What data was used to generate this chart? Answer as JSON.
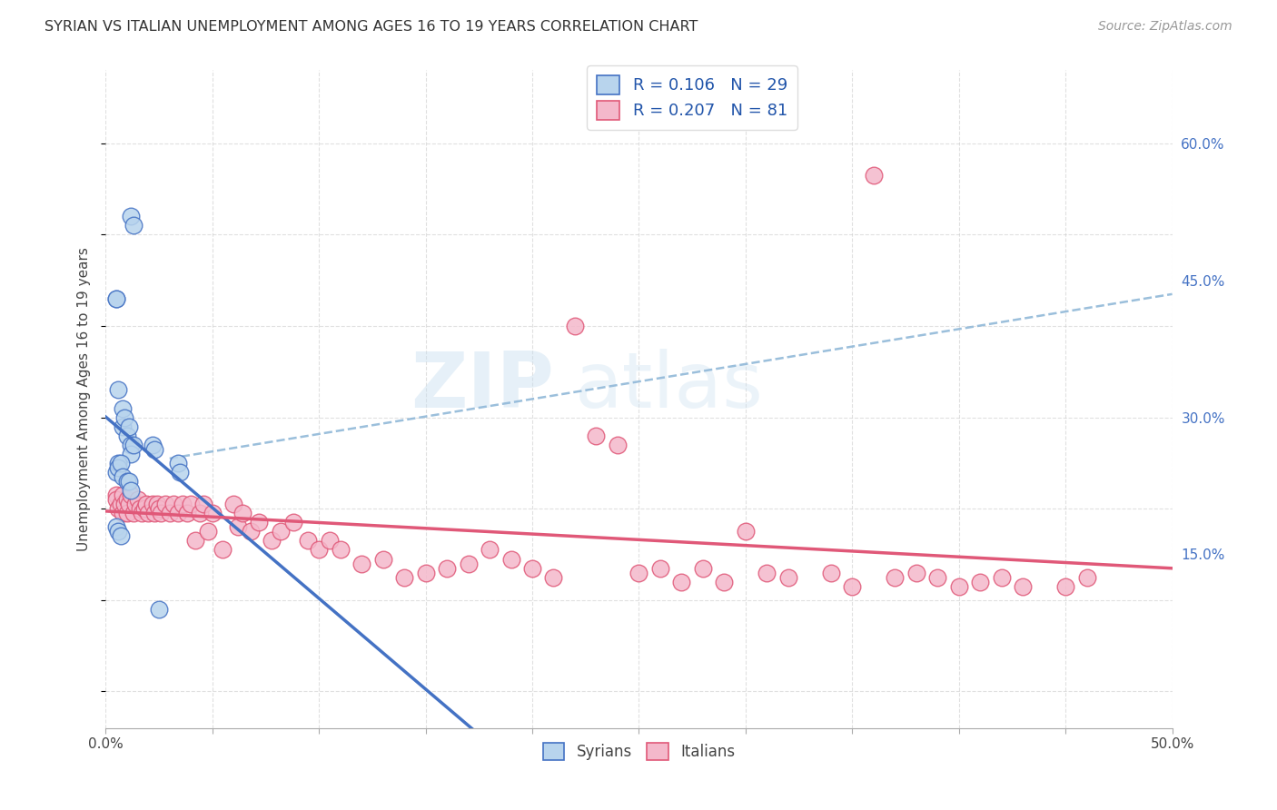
{
  "title": "SYRIAN VS ITALIAN UNEMPLOYMENT AMONG AGES 16 TO 19 YEARS CORRELATION CHART",
  "source": "Source: ZipAtlas.com",
  "ylabel": "Unemployment Among Ages 16 to 19 years",
  "xlim": [
    0.0,
    0.5
  ],
  "ylim": [
    -0.04,
    0.68
  ],
  "color_syrian": "#b8d4ed",
  "color_italian": "#f4b8cb",
  "color_line_syrian": "#4472c4",
  "color_line_italian": "#e05878",
  "color_dashed": "#90b8d8",
  "background": "#ffffff",
  "grid_color": "#cccccc",
  "watermark_text": "ZIP",
  "watermark_text2": "atlas",
  "syrian_x": [
    0.012,
    0.013,
    0.005,
    0.005,
    0.006,
    0.008,
    0.008,
    0.009,
    0.01,
    0.011,
    0.012,
    0.012,
    0.013,
    0.005,
    0.006,
    0.006,
    0.007,
    0.008,
    0.01,
    0.011,
    0.012,
    0.022,
    0.023,
    0.034,
    0.035,
    0.005,
    0.006,
    0.007,
    0.025
  ],
  "syrian_y": [
    0.52,
    0.51,
    0.43,
    0.43,
    0.33,
    0.31,
    0.29,
    0.3,
    0.28,
    0.29,
    0.27,
    0.26,
    0.27,
    0.24,
    0.25,
    0.245,
    0.25,
    0.235,
    0.23,
    0.23,
    0.22,
    0.27,
    0.265,
    0.25,
    0.24,
    0.18,
    0.175,
    0.17,
    0.09
  ],
  "italian_x": [
    0.36,
    0.005,
    0.005,
    0.006,
    0.007,
    0.008,
    0.008,
    0.009,
    0.01,
    0.01,
    0.011,
    0.012,
    0.013,
    0.014,
    0.015,
    0.016,
    0.017,
    0.018,
    0.019,
    0.02,
    0.022,
    0.023,
    0.024,
    0.025,
    0.026,
    0.028,
    0.03,
    0.032,
    0.034,
    0.036,
    0.038,
    0.04,
    0.042,
    0.044,
    0.046,
    0.048,
    0.05,
    0.055,
    0.06,
    0.062,
    0.064,
    0.068,
    0.072,
    0.078,
    0.082,
    0.088,
    0.095,
    0.1,
    0.105,
    0.11,
    0.12,
    0.13,
    0.14,
    0.15,
    0.16,
    0.17,
    0.18,
    0.19,
    0.2,
    0.21,
    0.22,
    0.23,
    0.24,
    0.25,
    0.26,
    0.27,
    0.28,
    0.29,
    0.3,
    0.31,
    0.32,
    0.34,
    0.35,
    0.37,
    0.38,
    0.39,
    0.4,
    0.41,
    0.42,
    0.43,
    0.45,
    0.46
  ],
  "italian_y": [
    0.565,
    0.215,
    0.21,
    0.2,
    0.205,
    0.195,
    0.215,
    0.205,
    0.21,
    0.195,
    0.205,
    0.215,
    0.195,
    0.205,
    0.21,
    0.2,
    0.195,
    0.2,
    0.205,
    0.195,
    0.205,
    0.195,
    0.205,
    0.2,
    0.195,
    0.205,
    0.195,
    0.205,
    0.195,
    0.205,
    0.195,
    0.205,
    0.165,
    0.195,
    0.205,
    0.175,
    0.195,
    0.155,
    0.205,
    0.18,
    0.195,
    0.175,
    0.185,
    0.165,
    0.175,
    0.185,
    0.165,
    0.155,
    0.165,
    0.155,
    0.14,
    0.145,
    0.125,
    0.13,
    0.135,
    0.14,
    0.155,
    0.145,
    0.135,
    0.125,
    0.4,
    0.28,
    0.27,
    0.13,
    0.135,
    0.12,
    0.135,
    0.12,
    0.175,
    0.13,
    0.125,
    0.13,
    0.115,
    0.125,
    0.13,
    0.125,
    0.115,
    0.12,
    0.125,
    0.115,
    0.115,
    0.125
  ]
}
